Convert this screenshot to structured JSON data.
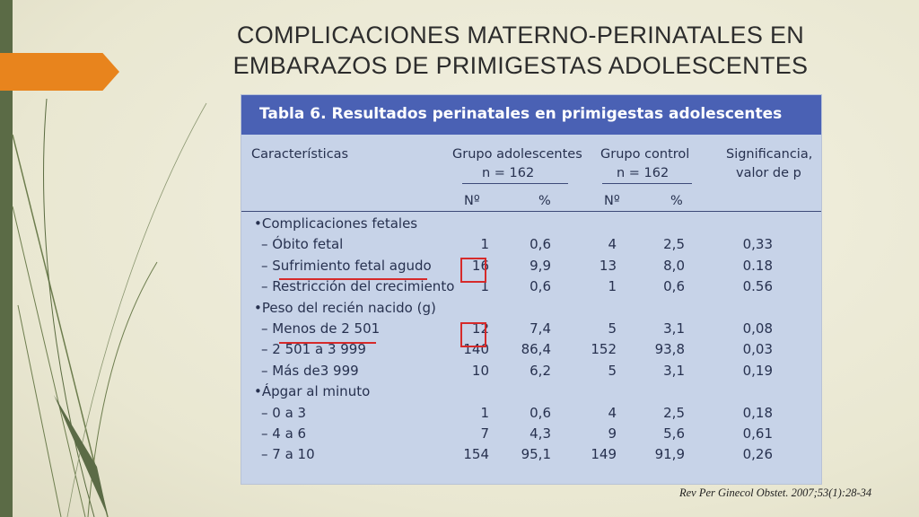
{
  "slide": {
    "title_line1": "COMPLICACIONES MATERNO-PERINATALES EN",
    "title_line2": "EMBARAZOS DE PRIMIGESTAS ADOLESCENTES",
    "citation": "Rev Per Ginecol Obstet. 2007;53(1):28-34",
    "accent_color": "#e8841d",
    "sidebar_color": "#5b6b46"
  },
  "table": {
    "caption": "Tabla 6. Resultados perinatales en primigestas adolescentes",
    "header_color": "#4a61b4",
    "columns": {
      "characteristics": "Características",
      "group_adolescent": "Grupo adolescentes",
      "group_adolescent_n": "n = 162",
      "group_control": "Grupo control",
      "group_control_n": "n = 162",
      "significance_1": "Significancia,",
      "significance_2": "valor de p",
      "num_label": "Nº",
      "pct_label": "%"
    },
    "rows": [
      {
        "label": "•Complicaciones fetales",
        "section": true
      },
      {
        "label": "–  Óbito fetal",
        "a_n": "1",
        "a_pct": "0,6",
        "c_n": "4",
        "c_pct": "2,5",
        "p": "0,33"
      },
      {
        "label": "–  Sufrimiento fetal agudo",
        "a_n": "16",
        "a_pct": "9,9",
        "c_n": "13",
        "c_pct": "8,0",
        "p": "0.18",
        "highlight": true
      },
      {
        "label": "–  Restricción del crecimiento",
        "a_n": "1",
        "a_pct": "0,6",
        "c_n": "1",
        "c_pct": "0,6",
        "p": "0.56"
      },
      {
        "label": "•Peso del recién nacido (g)",
        "section": true
      },
      {
        "label": "–  Menos de 2 501",
        "a_n": "12",
        "a_pct": "7,4",
        "c_n": "5",
        "c_pct": "3,1",
        "p": "0,08",
        "highlight": true
      },
      {
        "label": "–  2 501 a 3 999",
        "a_n": "140",
        "a_pct": "86,4",
        "c_n": "152",
        "c_pct": "93,8",
        "p": "0,03"
      },
      {
        "label": "–  Más de3 999",
        "a_n": "10",
        "a_pct": "6,2",
        "c_n": "5",
        "c_pct": "3,1",
        "p": "0,19"
      },
      {
        "label": "•Ápgar al minuto",
        "section": true
      },
      {
        "label": "–  0 a 3",
        "a_n": "1",
        "a_pct": "0,6",
        "c_n": "4",
        "c_pct": "2,5",
        "p": "0,18"
      },
      {
        "label": "–  4 a 6",
        "a_n": "7",
        "a_pct": "4,3",
        "c_n": "9",
        "c_pct": "5,6",
        "p": "0,61"
      },
      {
        "label": "–  7 a 10",
        "a_n": "154",
        "a_pct": "95,1",
        "c_n": "149",
        "c_pct": "91,9",
        "p": "0,26"
      }
    ]
  }
}
